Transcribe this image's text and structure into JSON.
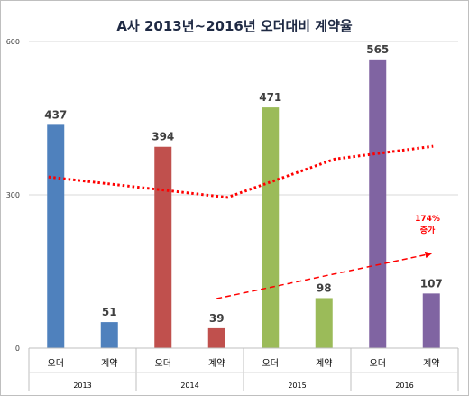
{
  "chart_data": {
    "type": "bar",
    "title": "A사 2013년~2016년 오더대비 계약율",
    "ylim": [
      0,
      600
    ],
    "yticks": [
      0,
      300,
      600
    ],
    "grid": true,
    "legend": "none",
    "groups": [
      {
        "year": "2013",
        "color": "#4f81bd",
        "bars": [
          {
            "label": "오더",
            "value": 437
          },
          {
            "label": "계약",
            "value": 51
          }
        ]
      },
      {
        "year": "2014",
        "color": "#c0504d",
        "bars": [
          {
            "label": "오더",
            "value": 394
          },
          {
            "label": "계약",
            "value": 39
          }
        ]
      },
      {
        "year": "2015",
        "color": "#9bbb59",
        "bars": [
          {
            "label": "오더",
            "value": 471
          },
          {
            "label": "계약",
            "value": 98
          }
        ]
      },
      {
        "year": "2016",
        "color": "#8064a2",
        "bars": [
          {
            "label": "오더",
            "value": 565
          },
          {
            "label": "계약",
            "value": 107
          }
        ]
      }
    ],
    "trend_lines": [
      {
        "style": "dotted",
        "color": "#ff0000",
        "points": [
          {
            "group": "2013",
            "value": 335
          },
          {
            "group": "2014",
            "value": 295
          },
          {
            "group": "2015",
            "value": 370
          },
          {
            "group": "2016",
            "value": 395
          }
        ]
      },
      {
        "style": "dashed-arrow",
        "color": "#ff0000",
        "points": [
          {
            "group": "2014",
            "value": 97
          },
          {
            "group": "2016",
            "value": 185
          }
        ]
      }
    ],
    "annotation": {
      "line1": "174%",
      "line2": "증가",
      "color": "#ff0000"
    }
  }
}
